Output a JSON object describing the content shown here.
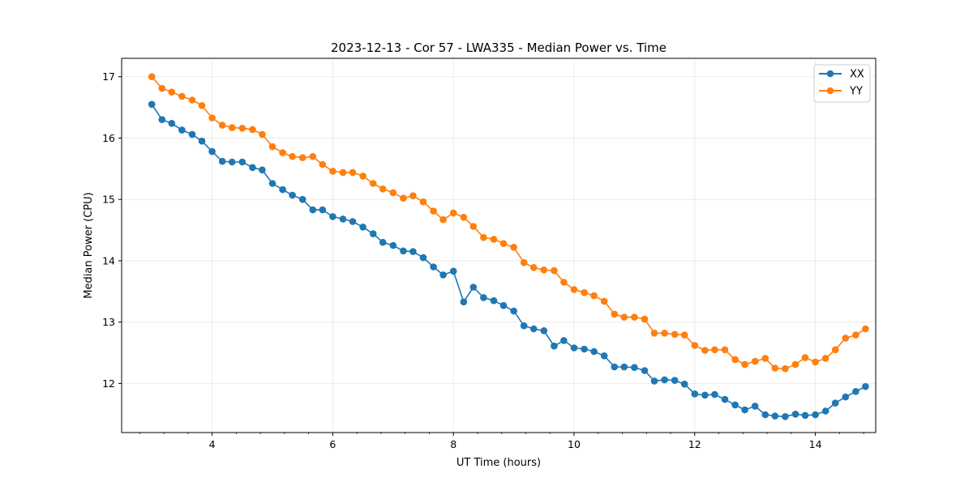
{
  "chart_data": {
    "type": "line",
    "title": "2023-12-13 - Cor 57 - LWA335 - Median Power vs. Time",
    "xlabel": "UT Time (hours)",
    "ylabel": "Median Power (CPU)",
    "xlim": [
      2.5,
      15.0
    ],
    "ylim": [
      11.2,
      17.3
    ],
    "x_ticks": [
      4,
      6,
      8,
      10,
      12,
      14
    ],
    "x_tick_labels": [
      "4",
      "6",
      "8",
      "10",
      "12",
      "14"
    ],
    "y_ticks": [
      12,
      13,
      14,
      15,
      16,
      17
    ],
    "y_tick_labels": [
      "12",
      "13",
      "14",
      "15",
      "16",
      "17"
    ],
    "x_minor_step": 0.4,
    "grid": true,
    "legend_position": "top-right",
    "x": [
      3.0,
      3.17,
      3.33,
      3.5,
      3.67,
      3.83,
      4.0,
      4.17,
      4.33,
      4.5,
      4.67,
      4.83,
      5.0,
      5.17,
      5.33,
      5.5,
      5.67,
      5.83,
      6.0,
      6.17,
      6.33,
      6.5,
      6.67,
      6.83,
      7.0,
      7.17,
      7.33,
      7.5,
      7.67,
      7.83,
      8.0,
      8.17,
      8.33,
      8.5,
      8.67,
      8.83,
      9.0,
      9.17,
      9.33,
      9.5,
      9.67,
      9.83,
      10.0,
      10.17,
      10.33,
      10.5,
      10.67,
      10.83,
      11.0,
      11.17,
      11.33,
      11.5,
      11.67,
      11.83,
      12.0,
      12.17,
      12.33,
      12.5,
      12.67,
      12.83,
      13.0,
      13.17,
      13.33,
      13.5,
      13.67,
      13.83,
      14.0,
      14.17,
      14.33,
      14.5,
      14.67,
      14.83
    ],
    "series": [
      {
        "name": "XX",
        "color": "#1f77b4",
        "values": [
          16.55,
          16.3,
          16.24,
          16.13,
          16.06,
          15.95,
          15.78,
          15.62,
          15.61,
          15.61,
          15.52,
          15.48,
          15.26,
          15.16,
          15.07,
          15.0,
          14.83,
          14.83,
          14.72,
          14.68,
          14.64,
          14.55,
          14.44,
          14.3,
          14.25,
          14.16,
          14.15,
          14.05,
          13.9,
          13.77,
          13.83,
          13.33,
          13.57,
          13.4,
          13.35,
          13.27,
          13.18,
          12.94,
          12.89,
          12.86,
          12.61,
          12.7,
          12.58,
          12.56,
          12.52,
          12.45,
          12.27,
          12.27,
          12.26,
          12.21,
          12.04,
          12.06,
          12.05,
          11.99,
          11.83,
          11.81,
          11.82,
          11.74,
          11.65,
          11.57,
          11.63,
          11.49,
          11.47,
          11.46,
          11.5,
          11.48,
          11.49,
          11.55,
          11.68,
          11.78,
          11.87,
          11.95
        ]
      },
      {
        "name": "YY",
        "color": "#ff7f0e",
        "values": [
          17.0,
          16.81,
          16.75,
          16.68,
          16.62,
          16.53,
          16.33,
          16.21,
          16.17,
          16.16,
          16.14,
          16.06,
          15.86,
          15.76,
          15.7,
          15.68,
          15.7,
          15.57,
          15.46,
          15.44,
          15.44,
          15.38,
          15.26,
          15.17,
          15.11,
          15.02,
          15.06,
          14.96,
          14.81,
          14.67,
          14.78,
          14.71,
          14.56,
          14.38,
          14.35,
          14.28,
          14.22,
          13.97,
          13.89,
          13.85,
          13.84,
          13.65,
          13.53,
          13.48,
          13.43,
          13.34,
          13.13,
          13.08,
          13.08,
          13.05,
          12.82,
          12.82,
          12.8,
          12.79,
          12.62,
          12.54,
          12.55,
          12.55,
          12.39,
          12.31,
          12.36,
          12.41,
          12.25,
          12.24,
          12.31,
          12.42,
          12.35,
          12.41,
          12.55,
          12.74,
          12.79,
          12.89
        ]
      }
    ]
  }
}
